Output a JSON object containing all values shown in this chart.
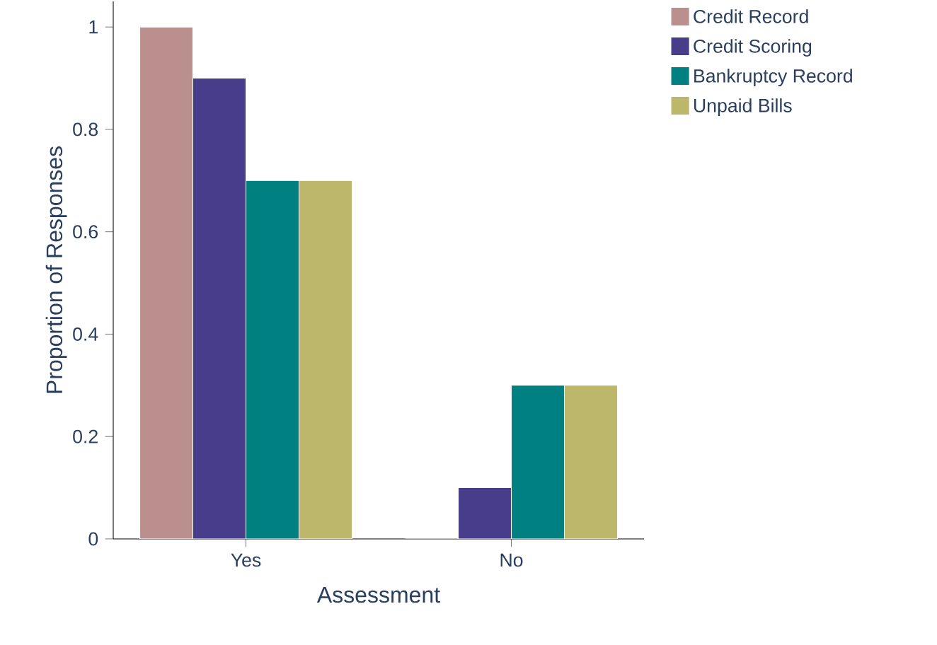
{
  "chart_data": {
    "type": "bar",
    "xlabel": "Assessment",
    "ylabel": "Proportion of Responses",
    "categories": [
      "Yes",
      "No"
    ],
    "series": [
      {
        "name": "Credit Record",
        "color": "#bc8f8f",
        "values": [
          1,
          0
        ]
      },
      {
        "name": "Credit Scoring",
        "color": "#483d8b",
        "values": [
          0.9,
          0.1
        ]
      },
      {
        "name": "Bankruptcy Record",
        "color": "#008080",
        "values": [
          0.7,
          0.3
        ]
      },
      {
        "name": "Unpaid Bills",
        "color": "#bdb76b",
        "values": [
          0.7,
          0.3
        ]
      }
    ],
    "ylim": [
      0,
      1.05
    ],
    "yticks": [
      0,
      0.2,
      0.4,
      0.6,
      0.8,
      1
    ],
    "grid": false,
    "legend": "top right"
  }
}
